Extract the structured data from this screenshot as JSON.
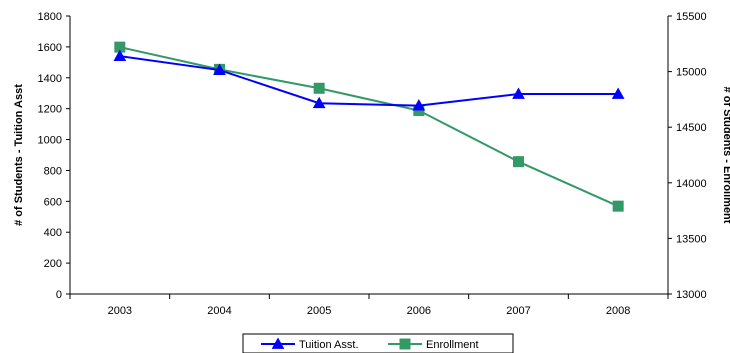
{
  "chart_data": {
    "type": "line",
    "title": "",
    "xlabel": "",
    "categories": [
      "2003",
      "2004",
      "2005",
      "2006",
      "2007",
      "2008"
    ],
    "y_left": {
      "label": "# of Students - Tuition Asst",
      "range": [
        0,
        1800
      ],
      "ticks": [
        0,
        200,
        400,
        600,
        800,
        1000,
        1200,
        1400,
        1600,
        1800
      ]
    },
    "y_right": {
      "label": "# of Students - Enrollment",
      "range": [
        13000,
        15500
      ],
      "ticks": [
        13000,
        13500,
        14000,
        14500,
        15000,
        15500
      ]
    },
    "series": [
      {
        "name": "Tuition Asst.",
        "axis": "left",
        "color": "#0000ff",
        "marker": "triangle",
        "values": [
          1540,
          1450,
          1235,
          1220,
          1295,
          1295
        ]
      },
      {
        "name": "Enrollment",
        "axis": "right",
        "color": "#339966",
        "marker": "square",
        "values": [
          15220,
          15020,
          14850,
          14650,
          14190,
          13790
        ]
      }
    ],
    "grid": false,
    "legend": "bottom"
  }
}
